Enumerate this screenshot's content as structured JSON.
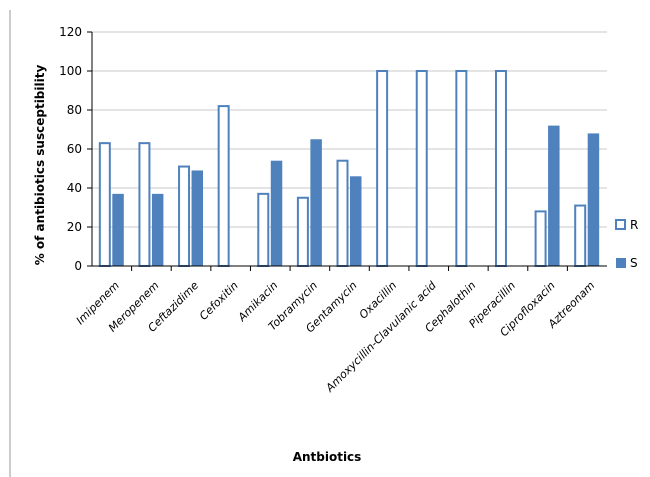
{
  "chart_data": {
    "type": "bar",
    "title": "",
    "xlabel": "Antbiotics",
    "ylabel": "% of antibiotics susceptibility",
    "ylim": [
      0,
      120
    ],
    "yticks": [
      0,
      20,
      40,
      60,
      80,
      100,
      120
    ],
    "grid": true,
    "legend_position": "right",
    "categories": [
      "Imipenem",
      "Meropenem",
      "Ceftazidime",
      "Cefoxitin",
      "Amikacin",
      "Tobramycin",
      "Gentamycin",
      "Oxacillin",
      "Amoxycillin-Clavulanic acid",
      "Cephalothin",
      "Piperacillin",
      "Ciprofloxacin",
      "Aztreonam"
    ],
    "series": [
      {
        "name": "R",
        "values": [
          63,
          63,
          51,
          82,
          37,
          35,
          54,
          100,
          100,
          100,
          100,
          28,
          31
        ],
        "color": "#4f81bd",
        "style": "outline"
      },
      {
        "name": "S",
        "values": [
          37,
          37,
          49,
          0,
          54,
          65,
          46,
          0,
          0,
          0,
          0,
          72,
          68
        ],
        "color": "#4f81bd",
        "style": "filled"
      }
    ]
  }
}
